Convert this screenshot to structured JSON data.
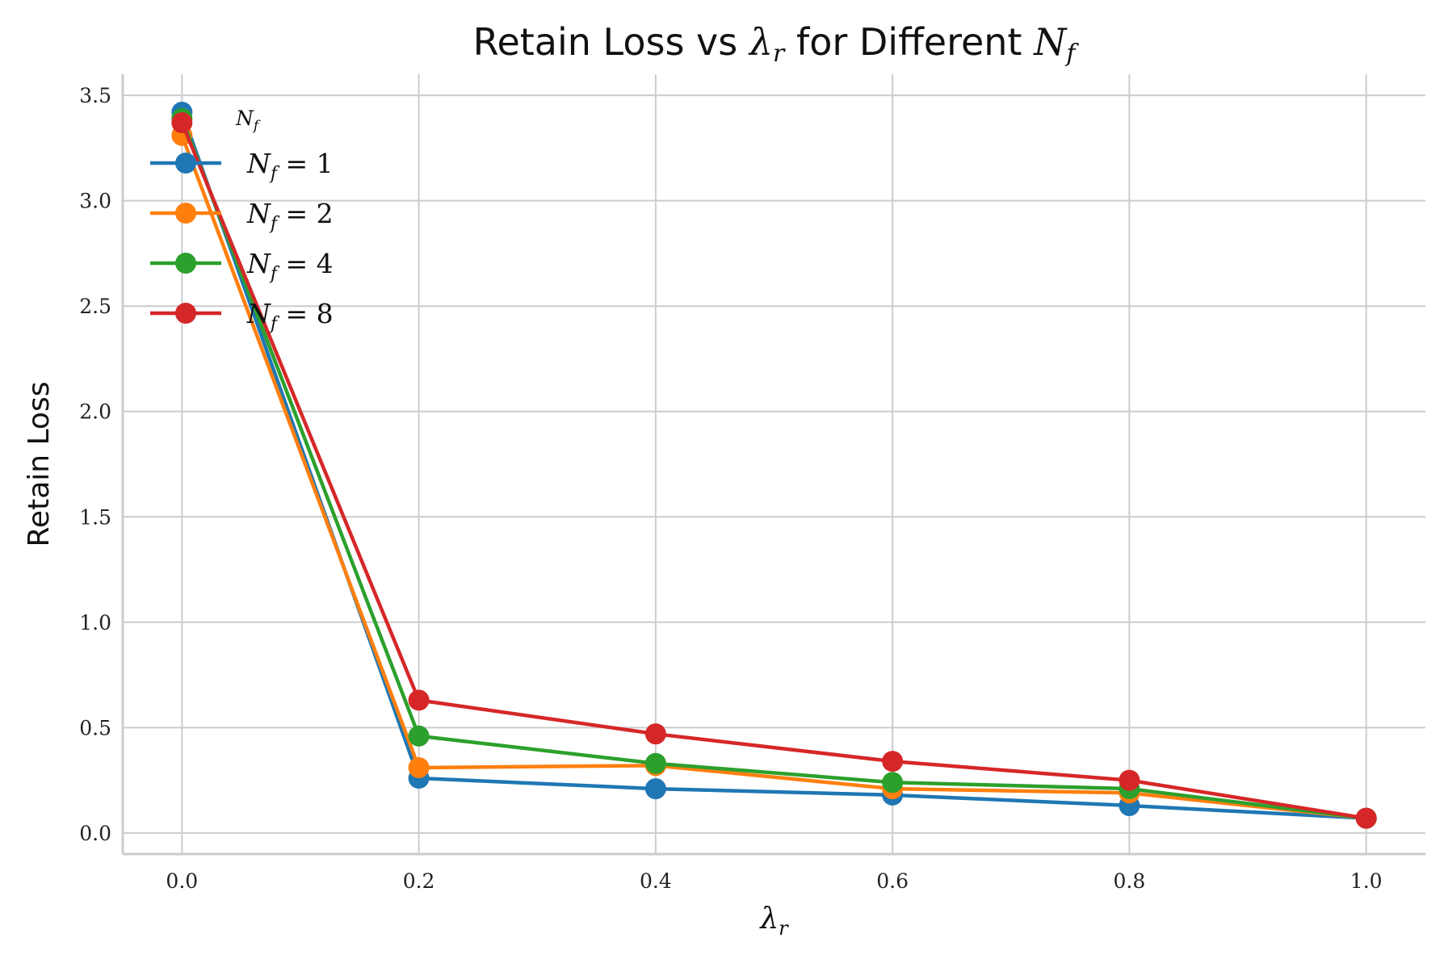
{
  "chart_data": {
    "type": "line",
    "title": {
      "prefix": "Retain Loss vs ",
      "lambda_symbol": "λ",
      "lambda_sub": "r",
      "middle": " for Different ",
      "n_symbol": "N",
      "n_sub": "f"
    },
    "xlabel": {
      "symbol": "λ",
      "sub": "r"
    },
    "ylabel": "Retain Loss",
    "x": [
      0.0,
      0.2,
      0.4,
      0.6,
      0.8,
      1.0
    ],
    "xlim": [
      -0.05,
      1.05
    ],
    "ylim": [
      -0.1,
      3.6
    ],
    "xticks": [
      0.0,
      0.2,
      0.4,
      0.6,
      0.8,
      1.0
    ],
    "xtick_labels": [
      "0.0",
      "0.2",
      "0.4",
      "0.6",
      "0.8",
      "1.0"
    ],
    "yticks": [
      0.0,
      0.5,
      1.0,
      1.5,
      2.0,
      2.5,
      3.0,
      3.5
    ],
    "ytick_labels": [
      "0.0",
      "0.5",
      "1.0",
      "1.5",
      "2.0",
      "2.5",
      "3.0",
      "3.5"
    ],
    "grid": true,
    "legend": {
      "placement": "top-left",
      "title": {
        "symbol": "N",
        "sub": "f"
      },
      "entries": [
        {
          "symbol": "N",
          "sub": "f",
          "rest": " = 1"
        },
        {
          "symbol": "N",
          "sub": "f",
          "rest": " = 2"
        },
        {
          "symbol": "N",
          "sub": "f",
          "rest": " = 4"
        },
        {
          "symbol": "N",
          "sub": "f",
          "rest": " = 8"
        }
      ]
    },
    "series": [
      {
        "color": "#1f77b4",
        "values": [
          3.42,
          0.26,
          0.21,
          0.18,
          0.13,
          0.07
        ]
      },
      {
        "color": "#ff7f0e",
        "values": [
          3.31,
          0.31,
          0.32,
          0.21,
          0.19,
          0.07
        ]
      },
      {
        "color": "#2ca02c",
        "values": [
          3.39,
          0.46,
          0.33,
          0.24,
          0.21,
          0.07
        ]
      },
      {
        "color": "#d62728",
        "values": [
          3.37,
          0.63,
          0.47,
          0.34,
          0.25,
          0.07
        ]
      }
    ]
  }
}
